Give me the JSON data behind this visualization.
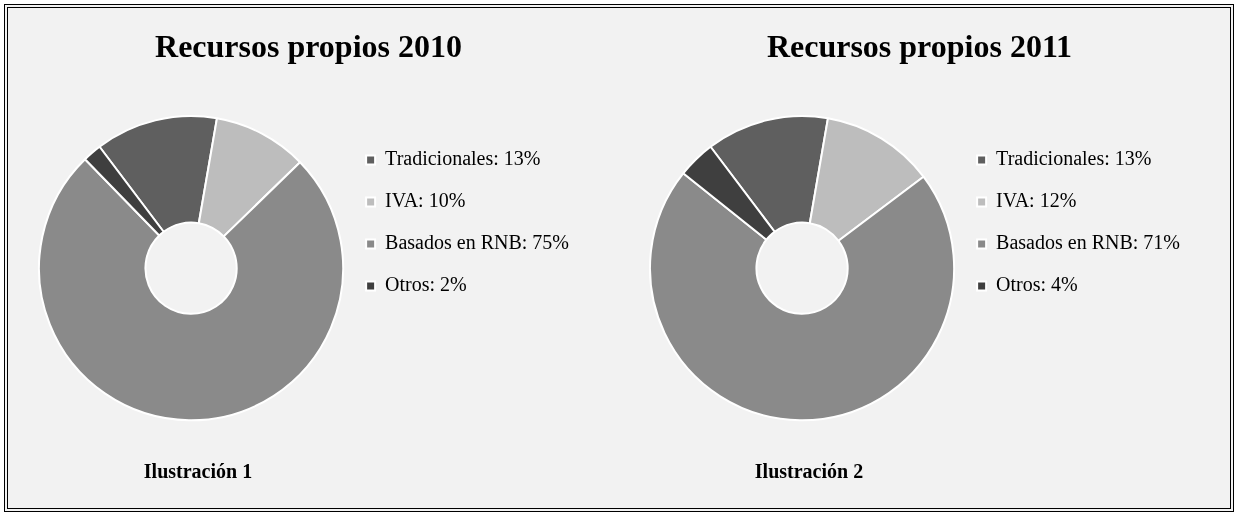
{
  "chart_data": [
    {
      "type": "donut",
      "title": "Recursos propios 2010",
      "categories": [
        "Tradicionales: 13%",
        "IVA: 10%",
        "Basados en RNB: 75%",
        "Otros: 2%"
      ],
      "values": [
        13,
        10,
        75,
        2
      ],
      "colors": [
        "#5f5f5f",
        "#bdbdbd",
        "#8a8a8a",
        "#3f3f3f"
      ],
      "legend": "right",
      "annotations": [
        "Ilustración 1"
      ]
    },
    {
      "type": "donut",
      "title": "Recursos propios 2011",
      "categories": [
        "Tradicionales: 13%",
        "IVA: 12%",
        "Basados en RNB: 71%",
        "Otros: 4%"
      ],
      "values": [
        13,
        12,
        71,
        4
      ],
      "colors": [
        "#5f5f5f",
        "#bdbdbd",
        "#8a8a8a",
        "#3f3f3f"
      ],
      "legend": "right",
      "annotations": [
        "Ilustración 2"
      ]
    }
  ]
}
